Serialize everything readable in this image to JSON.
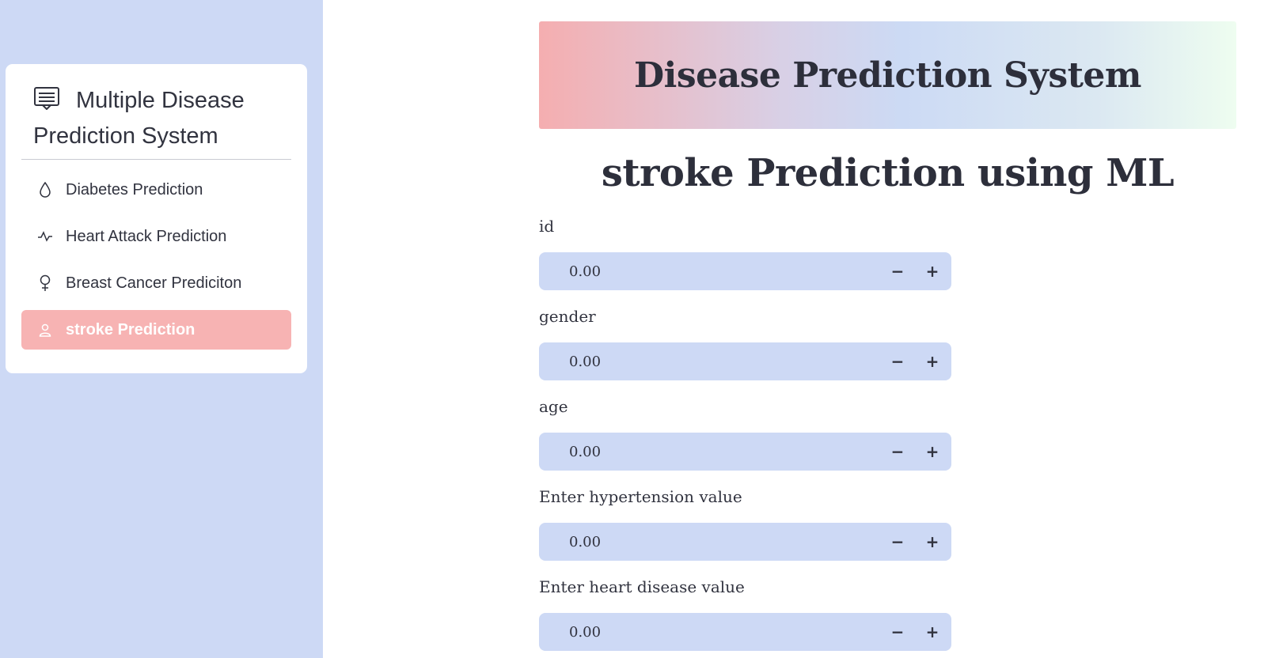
{
  "sidebar": {
    "title": "Multiple Disease Prediction System",
    "items": [
      {
        "label": "Diabetes Prediction",
        "icon": "droplet-icon",
        "active": false
      },
      {
        "label": "Heart Attack Prediction",
        "icon": "activity-icon",
        "active": false
      },
      {
        "label": "Breast Cancer Prediciton",
        "icon": "female-icon",
        "active": false
      },
      {
        "label": "stroke Prediction",
        "icon": "person-icon",
        "active": true
      }
    ],
    "active_color": "#f7b3b3",
    "background_color": "#cdd9f5"
  },
  "main": {
    "banner_title": "Disease Prediction System",
    "page_title": "stroke Prediction using ML",
    "fields": [
      {
        "label": "id",
        "value": "0.00"
      },
      {
        "label": "gender",
        "value": "0.00"
      },
      {
        "label": "age",
        "value": "0.00"
      },
      {
        "label": "Enter hypertension value",
        "value": "0.00"
      },
      {
        "label": "Enter heart disease value",
        "value": "0.00"
      }
    ],
    "step_minus": "−",
    "step_plus": "+"
  }
}
